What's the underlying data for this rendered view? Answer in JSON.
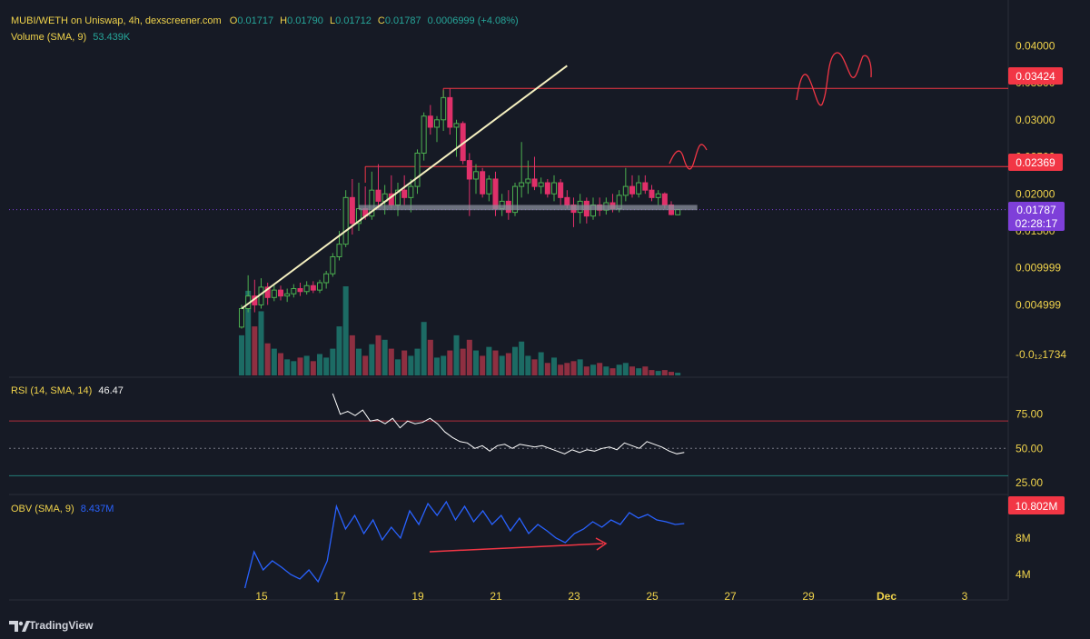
{
  "header": {
    "symbol": "MUBI/WETH on Uniswap, 4h, dexscreener.com",
    "o_label": "O",
    "o": "0.01717",
    "h_label": "H",
    "h": "0.01790",
    "l_label": "L",
    "l": "0.01712",
    "c_label": "C",
    "c": "0.01787",
    "change": "0.0006999 (+4.08%)",
    "volume_label": "Volume (SMA, 9)",
    "volume_value": "53.439K"
  },
  "rsi_header": {
    "label": "RSI (14, SMA, 14)",
    "value": "46.47"
  },
  "obv_header": {
    "label": "OBV (SMA, 9)",
    "value": "8.437M"
  },
  "price_axis": {
    "ticks": [
      "0.04000",
      "0.03500",
      "0.03000",
      "0.02500",
      "0.02000",
      "0.01500",
      "0.009999",
      "0.004999",
      "-0.0₁₂1734"
    ]
  },
  "rsi_axis": {
    "ticks": [
      "75.00",
      "50.00",
      "25.00"
    ]
  },
  "obv_axis": {
    "ticks": [
      "8M",
      "4M"
    ]
  },
  "price_badges": {
    "level_high": "0.03424",
    "level_mid": "0.02369",
    "current": "0.01787",
    "countdown": "02:28:17",
    "obv_current": "10.802M"
  },
  "time_axis": {
    "labels": [
      "15",
      "17",
      "19",
      "21",
      "23",
      "25",
      "27",
      "29",
      "Dec",
      "3"
    ]
  },
  "brand": {
    "name": "TradingView"
  },
  "colors": {
    "background": "#161a25",
    "up": "#26a69a",
    "down": "#ef5350",
    "candle_up": "#4caf50",
    "candle_down": "#e0306a",
    "volume_up": "#1c6b64",
    "volume_down": "#8e2f41",
    "level_line": "#f23645",
    "trendline": "#f5f0c0",
    "current_badge": "#7e3fd9",
    "rsi_line": "#ffffff",
    "obv_line": "#2962ff",
    "arrow": "#f23645",
    "axis_text": "#f0d34b"
  },
  "chart_data": [
    {
      "type": "candlestick",
      "title": "MUBI/WETH on Uniswap, 4h, dexscreener.com",
      "x_labels": [
        "15",
        "17",
        "19",
        "21",
        "23",
        "25",
        "27",
        "29",
        "Dec",
        "3"
      ],
      "ylim": [
        -0.0017,
        0.0425
      ],
      "candles": [
        {
          "o": 0.002,
          "h": 0.005,
          "l": 0.0018,
          "c": 0.0045
        },
        {
          "o": 0.0045,
          "h": 0.009,
          "l": 0.004,
          "c": 0.0062
        },
        {
          "o": 0.0062,
          "h": 0.0084,
          "l": 0.004,
          "c": 0.005
        },
        {
          "o": 0.005,
          "h": 0.0086,
          "l": 0.0045,
          "c": 0.0074
        },
        {
          "o": 0.0074,
          "h": 0.008,
          "l": 0.005,
          "c": 0.006
        },
        {
          "o": 0.006,
          "h": 0.0078,
          "l": 0.0055,
          "c": 0.007
        },
        {
          "o": 0.007,
          "h": 0.0076,
          "l": 0.0056,
          "c": 0.0062
        },
        {
          "o": 0.0062,
          "h": 0.0072,
          "l": 0.0054,
          "c": 0.0065
        },
        {
          "o": 0.0065,
          "h": 0.0078,
          "l": 0.006,
          "c": 0.0072
        },
        {
          "o": 0.0072,
          "h": 0.008,
          "l": 0.0062,
          "c": 0.0068
        },
        {
          "o": 0.0068,
          "h": 0.0082,
          "l": 0.0064,
          "c": 0.0076
        },
        {
          "o": 0.0076,
          "h": 0.0082,
          "l": 0.0066,
          "c": 0.007
        },
        {
          "o": 0.007,
          "h": 0.0084,
          "l": 0.0066,
          "c": 0.008
        },
        {
          "o": 0.008,
          "h": 0.0096,
          "l": 0.0072,
          "c": 0.0092
        },
        {
          "o": 0.0092,
          "h": 0.012,
          "l": 0.0088,
          "c": 0.0115
        },
        {
          "o": 0.0115,
          "h": 0.015,
          "l": 0.011,
          "c": 0.0132
        },
        {
          "o": 0.0132,
          "h": 0.0205,
          "l": 0.0128,
          "c": 0.0195
        },
        {
          "o": 0.0195,
          "h": 0.022,
          "l": 0.0145,
          "c": 0.016
        },
        {
          "o": 0.016,
          "h": 0.0215,
          "l": 0.015,
          "c": 0.018
        },
        {
          "o": 0.018,
          "h": 0.021,
          "l": 0.0165,
          "c": 0.017
        },
        {
          "o": 0.017,
          "h": 0.023,
          "l": 0.0165,
          "c": 0.0205
        },
        {
          "o": 0.0205,
          "h": 0.024,
          "l": 0.018,
          "c": 0.019
        },
        {
          "o": 0.019,
          "h": 0.0212,
          "l": 0.0172,
          "c": 0.02
        },
        {
          "o": 0.02,
          "h": 0.0225,
          "l": 0.018,
          "c": 0.0185
        },
        {
          "o": 0.0185,
          "h": 0.0215,
          "l": 0.017,
          "c": 0.0205
        },
        {
          "o": 0.0205,
          "h": 0.0225,
          "l": 0.0185,
          "c": 0.0195
        },
        {
          "o": 0.0195,
          "h": 0.022,
          "l": 0.0175,
          "c": 0.021
        },
        {
          "o": 0.021,
          "h": 0.026,
          "l": 0.02,
          "c": 0.0255
        },
        {
          "o": 0.0255,
          "h": 0.031,
          "l": 0.0245,
          "c": 0.0305
        },
        {
          "o": 0.0305,
          "h": 0.032,
          "l": 0.028,
          "c": 0.029
        },
        {
          "o": 0.029,
          "h": 0.0305,
          "l": 0.027,
          "c": 0.03
        },
        {
          "o": 0.03,
          "h": 0.034,
          "l": 0.0285,
          "c": 0.033
        },
        {
          "o": 0.033,
          "h": 0.0342,
          "l": 0.028,
          "c": 0.029
        },
        {
          "o": 0.029,
          "h": 0.03,
          "l": 0.025,
          "c": 0.0295
        },
        {
          "o": 0.0295,
          "h": 0.0298,
          "l": 0.024,
          "c": 0.0245
        },
        {
          "o": 0.0245,
          "h": 0.0255,
          "l": 0.017,
          "c": 0.022
        },
        {
          "o": 0.022,
          "h": 0.024,
          "l": 0.02,
          "c": 0.023
        },
        {
          "o": 0.023,
          "h": 0.0235,
          "l": 0.0195,
          "c": 0.02
        },
        {
          "o": 0.02,
          "h": 0.0225,
          "l": 0.019,
          "c": 0.022
        },
        {
          "o": 0.022,
          "h": 0.023,
          "l": 0.017,
          "c": 0.018
        },
        {
          "o": 0.018,
          "h": 0.02,
          "l": 0.017,
          "c": 0.019
        },
        {
          "o": 0.019,
          "h": 0.0205,
          "l": 0.0165,
          "c": 0.0175
        },
        {
          "o": 0.0175,
          "h": 0.0215,
          "l": 0.017,
          "c": 0.021
        },
        {
          "o": 0.021,
          "h": 0.027,
          "l": 0.0195,
          "c": 0.0215
        },
        {
          "o": 0.0215,
          "h": 0.0245,
          "l": 0.02,
          "c": 0.022
        },
        {
          "o": 0.022,
          "h": 0.025,
          "l": 0.0205,
          "c": 0.021
        },
        {
          "o": 0.021,
          "h": 0.0222,
          "l": 0.02,
          "c": 0.0215
        },
        {
          "o": 0.0215,
          "h": 0.022,
          "l": 0.0195,
          "c": 0.02
        },
        {
          "o": 0.02,
          "h": 0.0225,
          "l": 0.019,
          "c": 0.0215
        },
        {
          "o": 0.0215,
          "h": 0.022,
          "l": 0.0185,
          "c": 0.0195
        },
        {
          "o": 0.0195,
          "h": 0.0205,
          "l": 0.018,
          "c": 0.0185
        },
        {
          "o": 0.0185,
          "h": 0.0195,
          "l": 0.0155,
          "c": 0.0175
        },
        {
          "o": 0.0175,
          "h": 0.02,
          "l": 0.016,
          "c": 0.019
        },
        {
          "o": 0.019,
          "h": 0.0195,
          "l": 0.016,
          "c": 0.017
        },
        {
          "o": 0.017,
          "h": 0.0195,
          "l": 0.0165,
          "c": 0.0185
        },
        {
          "o": 0.0185,
          "h": 0.0195,
          "l": 0.017,
          "c": 0.0178
        },
        {
          "o": 0.0178,
          "h": 0.0195,
          "l": 0.0172,
          "c": 0.0188
        },
        {
          "o": 0.0188,
          "h": 0.02,
          "l": 0.0175,
          "c": 0.018
        },
        {
          "o": 0.018,
          "h": 0.0205,
          "l": 0.0175,
          "c": 0.0198
        },
        {
          "o": 0.0198,
          "h": 0.0235,
          "l": 0.019,
          "c": 0.021
        },
        {
          "o": 0.021,
          "h": 0.0225,
          "l": 0.0195,
          "c": 0.02
        },
        {
          "o": 0.02,
          "h": 0.0225,
          "l": 0.0195,
          "c": 0.0215
        },
        {
          "o": 0.0215,
          "h": 0.0225,
          "l": 0.02,
          "c": 0.0205
        },
        {
          "o": 0.0205,
          "h": 0.0212,
          "l": 0.019,
          "c": 0.0195
        },
        {
          "o": 0.0195,
          "h": 0.0205,
          "l": 0.0185,
          "c": 0.02
        },
        {
          "o": 0.02,
          "h": 0.0202,
          "l": 0.018,
          "c": 0.0185
        },
        {
          "o": 0.0185,
          "h": 0.019,
          "l": 0.0171,
          "c": 0.0172
        },
        {
          "o": 0.01717,
          "h": 0.0179,
          "l": 0.01712,
          "c": 0.01787
        }
      ],
      "volume": [
        0.45,
        0.95,
        0.55,
        0.72,
        0.36,
        0.3,
        0.25,
        0.18,
        0.16,
        0.2,
        0.22,
        0.16,
        0.24,
        0.2,
        0.3,
        0.55,
        1.0,
        0.45,
        0.3,
        0.22,
        0.35,
        0.45,
        0.4,
        0.3,
        0.18,
        0.28,
        0.22,
        0.3,
        0.6,
        0.4,
        0.2,
        0.22,
        0.28,
        0.45,
        0.3,
        0.4,
        0.28,
        0.22,
        0.32,
        0.28,
        0.22,
        0.25,
        0.32,
        0.38,
        0.22,
        0.18,
        0.26,
        0.14,
        0.2,
        0.12,
        0.14,
        0.16,
        0.18,
        0.1,
        0.12,
        0.14,
        0.1,
        0.08,
        0.12,
        0.14,
        0.1,
        0.08,
        0.1,
        0.06,
        0.05,
        0.06,
        0.04,
        0.03
      ],
      "levels": [
        0.03424,
        0.02369
      ],
      "current_price": 0.01787
    },
    {
      "type": "line",
      "title": "RSI (14, SMA, 14)",
      "ylim": [
        19,
        100
      ],
      "y_ticks": [
        75,
        50,
        25
      ],
      "bands": [
        70,
        30
      ],
      "series": [
        {
          "values": [
            90,
            75,
            77,
            74,
            78,
            70,
            71,
            68,
            72,
            65,
            70,
            68,
            69,
            72,
            68,
            62,
            58,
            55,
            54,
            50,
            52,
            48,
            52,
            53,
            50,
            53,
            52,
            51,
            52,
            50,
            48,
            46,
            49,
            47,
            49,
            48,
            50,
            51,
            49,
            54,
            52,
            50,
            55,
            53,
            51,
            48,
            46,
            47
          ]
        }
      ]
    },
    {
      "type": "line",
      "title": "OBV (SMA, 9)",
      "ylim": [
        1.6,
        12.6
      ],
      "y_ticks": [
        8,
        4
      ],
      "series": [
        {
          "values": [
            2.5,
            6.5,
            4.5,
            5.5,
            4.8,
            4.0,
            3.5,
            4.5,
            3.2,
            5.5,
            11.5,
            9.0,
            10.5,
            8.5,
            10.0,
            7.8,
            9.2,
            8.0,
            11.0,
            9.5,
            11.8,
            10.5,
            12.0,
            10.0,
            11.5,
            9.8,
            11.0,
            9.5,
            10.5,
            8.8,
            10.2,
            8.5,
            9.5,
            8.8,
            8.0,
            7.5,
            8.5,
            9.0,
            9.8,
            9.2,
            10.0,
            9.5,
            10.8,
            10.2,
            10.6,
            10.0,
            9.8,
            9.5,
            9.6
          ]
        }
      ]
    }
  ]
}
